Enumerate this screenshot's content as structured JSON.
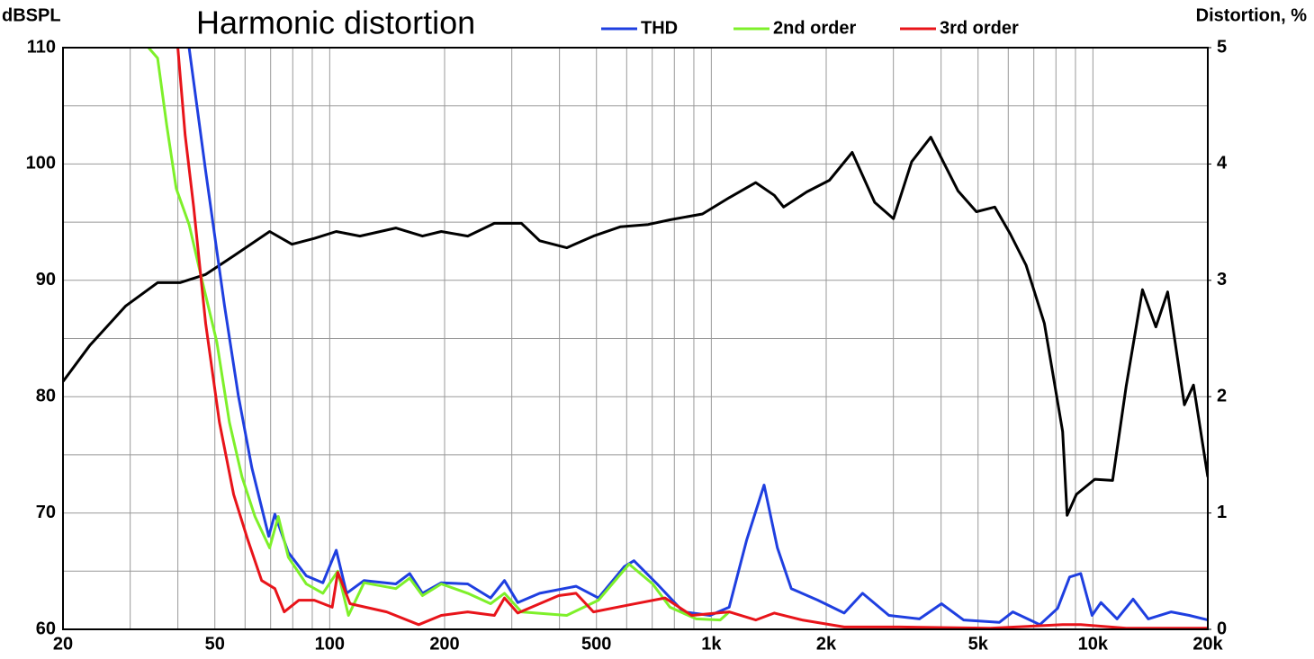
{
  "chart_data": {
    "type": "line",
    "title": "Harmonic distortion",
    "ylabel": "dBSPL",
    "y2label": "Distortion, %",
    "log_x": true,
    "grid": true,
    "xlim": [
      20,
      20000
    ],
    "xticks": [
      20,
      50,
      100,
      200,
      500,
      {
        "value": 1000,
        "label": "1k"
      },
      {
        "value": 2000,
        "label": "2k"
      },
      {
        "value": 5000,
        "label": "5k"
      },
      {
        "value": 10000,
        "label": "10k"
      },
      {
        "value": 20000,
        "label": "20k"
      }
    ],
    "xminor": [
      30,
      40,
      60,
      70,
      80,
      90,
      300,
      400,
      600,
      700,
      800,
      900,
      3000,
      4000,
      6000,
      7000,
      8000,
      9000
    ],
    "ylim": [
      60,
      110
    ],
    "yticks": [
      60,
      70,
      80,
      90,
      100,
      110
    ],
    "yminor": [
      65,
      75,
      85,
      95,
      105
    ],
    "y2lim": [
      0,
      5
    ],
    "y2ticks": [
      0,
      1,
      2,
      3,
      4,
      5
    ],
    "series": [
      {
        "color": "#000000",
        "axis": "y",
        "x": [
          20,
          23.5,
          29.2,
          35.4,
          40.5,
          47.3,
          56,
          69.6,
          79.6,
          91.1,
          104,
          120,
          149,
          175,
          196,
          230,
          270,
          318,
          355,
          418,
          491,
          577,
          683,
          779,
          948,
          1114,
          1307,
          1463,
          1547,
          1778,
          2040,
          2340,
          2680,
          3000,
          3350,
          3760,
          4430,
          4950,
          5530,
          6070,
          6680,
          7460,
          8330,
          8560,
          9050,
          10110,
          11260,
          12220,
          13480,
          14620,
          15700,
          17370,
          18350,
          20000
        ],
        "values": [
          81.3,
          84.4,
          87.8,
          89.8,
          89.8,
          90.5,
          92.1,
          94.2,
          93.1,
          93.6,
          94.2,
          93.8,
          94.5,
          93.8,
          94.2,
          93.8,
          94.9,
          94.9,
          93.4,
          92.8,
          93.8,
          94.6,
          94.8,
          95.2,
          95.7,
          97.1,
          98.4,
          97.3,
          96.3,
          97.6,
          98.6,
          101,
          96.7,
          95.3,
          100.2,
          102.3,
          97.7,
          95.9,
          96.3,
          94,
          91.3,
          86.3,
          77,
          69.8,
          71.6,
          72.9,
          72.8,
          80.9,
          89.2,
          86,
          89,
          79.3,
          81,
          73.1
        ]
      },
      {
        "name": "THD",
        "color": "#1f3fe0",
        "axis": "y2",
        "x": [
          42.8,
          47.3,
          53,
          57.6,
          62.5,
          69.2,
          71.8,
          77.9,
          86.8,
          96,
          104,
          110.7,
          123,
          149,
          162,
          175,
          196,
          230,
          264,
          287,
          311,
          355,
          442,
          506,
          592,
          627,
          721,
          845,
          993,
          1114,
          1238,
          1375,
          1490,
          1620,
          1903,
          2230,
          2490,
          2920,
          3510,
          4010,
          4580,
          5690,
          6170,
          7260,
          8080,
          8690,
          9290,
          9950,
          10500,
          11570,
          12740,
          13970,
          16040,
          17880,
          20000
        ],
        "values": [
          5,
          3.94,
          2.78,
          2.01,
          1.39,
          0.8,
          0.99,
          0.66,
          0.46,
          0.4,
          0.68,
          0.31,
          0.42,
          0.39,
          0.48,
          0.31,
          0.4,
          0.39,
          0.27,
          0.42,
          0.23,
          0.31,
          0.37,
          0.27,
          0.54,
          0.59,
          0.39,
          0.15,
          0.12,
          0.19,
          0.77,
          1.24,
          0.7,
          0.35,
          0.25,
          0.14,
          0.31,
          0.12,
          0.09,
          0.22,
          0.08,
          0.06,
          0.15,
          0.04,
          0.18,
          0.45,
          0.48,
          0.12,
          0.23,
          0.09,
          0.26,
          0.09,
          0.15,
          0.12,
          0.08
        ]
      },
      {
        "name": "2nd order",
        "color": "#7ef02a",
        "axis": "y2",
        "x": [
          33.5,
          35.4,
          37.4,
          39.6,
          42.8,
          46.2,
          50.6,
          54.6,
          58.9,
          63.7,
          69.6,
          73.3,
          77.9,
          86.8,
          96,
          105,
          112,
          123,
          149,
          162,
          175,
          196,
          230,
          264,
          287,
          318,
          418,
          506,
          609,
          702,
          779,
          913,
          1055,
          1114
        ],
        "values": [
          5,
          4.91,
          4.33,
          3.79,
          3.48,
          3.01,
          2.47,
          1.78,
          1.31,
          0.97,
          0.7,
          0.97,
          0.62,
          0.39,
          0.31,
          0.5,
          0.12,
          0.4,
          0.35,
          0.44,
          0.29,
          0.39,
          0.31,
          0.22,
          0.31,
          0.15,
          0.12,
          0.25,
          0.56,
          0.39,
          0.19,
          0.09,
          0.08,
          0.15
        ]
      },
      {
        "name": "3rd order",
        "color": "#e8141a",
        "axis": "y2",
        "x": [
          40,
          41.8,
          44,
          47.3,
          51.4,
          56,
          61,
          66.3,
          71.8,
          76,
          83,
          91.1,
          101.5,
          105,
          113,
          141,
          171,
          196,
          230,
          270,
          287,
          311,
          398,
          442,
          491,
          609,
          756,
          888,
          1114,
          1307,
          1463,
          1730,
          2230,
          3120,
          5380,
          8330,
          9290,
          12220,
          20000
        ],
        "values": [
          5,
          4.25,
          3.63,
          2.63,
          1.78,
          1.16,
          0.77,
          0.42,
          0.35,
          0.15,
          0.25,
          0.25,
          0.19,
          0.49,
          0.22,
          0.15,
          0.04,
          0.12,
          0.15,
          0.12,
          0.27,
          0.14,
          0.29,
          0.31,
          0.15,
          0.21,
          0.27,
          0.12,
          0.15,
          0.08,
          0.14,
          0.08,
          0.02,
          0.02,
          0.01,
          0.04,
          0.04,
          0.01,
          0.01
        ]
      }
    ]
  }
}
